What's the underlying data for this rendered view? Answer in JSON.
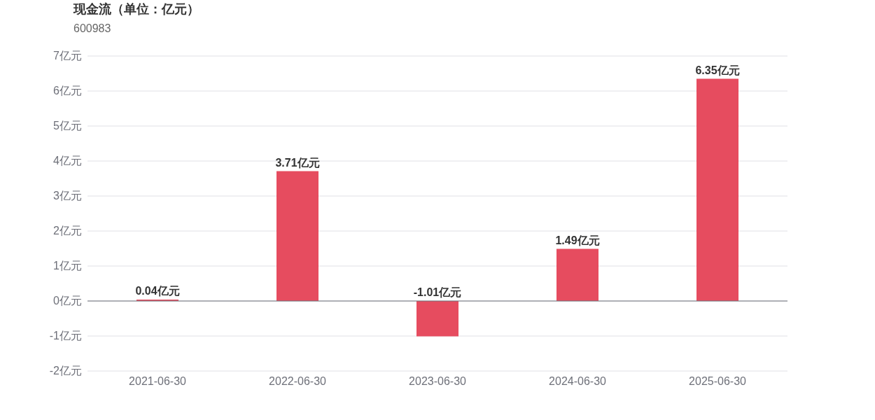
{
  "chart_data": {
    "type": "bar",
    "title": "现金流（单位：亿元）",
    "subtitle": "600983",
    "categories": [
      "2021-06-30",
      "2022-06-30",
      "2023-06-30",
      "2024-06-30",
      "2025-06-30"
    ],
    "values": [
      0.04,
      3.71,
      -1.01,
      1.49,
      6.35
    ],
    "value_labels": [
      "0.04亿元",
      "3.71亿元",
      "-1.01亿元",
      "1.49亿元",
      "6.35亿元"
    ],
    "color": "#e64c5f",
    "ylim": [
      -2,
      7
    ],
    "yticks": [
      {
        "value": -2,
        "label": "-2亿元"
      },
      {
        "value": -1,
        "label": "-1亿元"
      },
      {
        "value": 0,
        "label": "0亿元"
      },
      {
        "value": 1,
        "label": "1亿元"
      },
      {
        "value": 2,
        "label": "2亿元"
      },
      {
        "value": 3,
        "label": "3亿元"
      },
      {
        "value": 4,
        "label": "4亿元"
      },
      {
        "value": 5,
        "label": "5亿元"
      },
      {
        "value": 6,
        "label": "6亿元"
      },
      {
        "value": 7,
        "label": "7亿元"
      }
    ],
    "grid": "y"
  }
}
